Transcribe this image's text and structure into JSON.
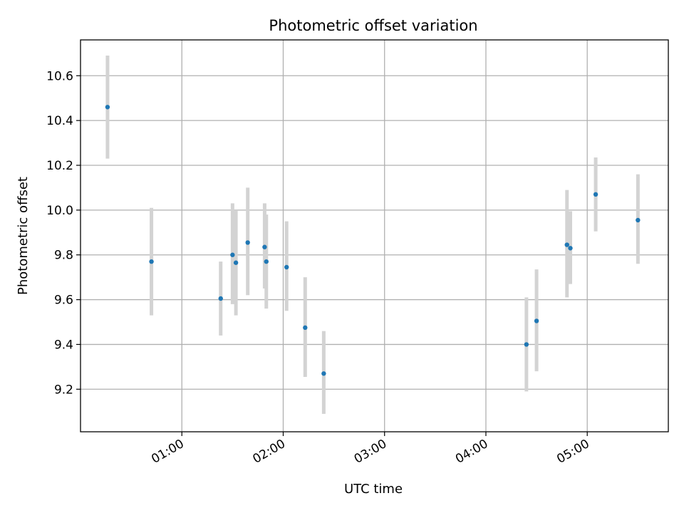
{
  "chart_data": {
    "type": "scatter",
    "title": "Photometric offset variation",
    "xlabel": "UTC time",
    "ylabel": "Photometric offset",
    "x_axis": "time",
    "xlim": [
      "00:00",
      "05:48"
    ],
    "ylim": [
      9.01,
      10.76
    ],
    "grid": true,
    "x_ticks": [
      "01:00",
      "02:00",
      "03:00",
      "04:00",
      "05:00"
    ],
    "y_ticks": [
      9.2,
      9.4,
      9.6,
      9.8,
      10.0,
      10.2,
      10.4,
      10.6
    ],
    "point_color": "#1f77b4",
    "error_color": "#d3d3d3",
    "points": [
      {
        "time": "00:16",
        "y": 10.46,
        "ylow": 10.23,
        "yhigh": 10.69
      },
      {
        "time": "00:42",
        "y": 9.77,
        "ylow": 9.53,
        "yhigh": 10.01
      },
      {
        "time": "01:23",
        "y": 9.605,
        "ylow": 9.44,
        "yhigh": 9.77
      },
      {
        "time": "01:30",
        "y": 9.8,
        "ylow": 9.58,
        "yhigh": 10.03
      },
      {
        "time": "01:32",
        "y": 9.765,
        "ylow": 9.53,
        "yhigh": 10.0
      },
      {
        "time": "01:39",
        "y": 9.855,
        "ylow": 9.62,
        "yhigh": 10.1
      },
      {
        "time": "01:49",
        "y": 9.835,
        "ylow": 9.65,
        "yhigh": 10.03
      },
      {
        "time": "01:50",
        "y": 9.77,
        "ylow": 9.56,
        "yhigh": 9.98
      },
      {
        "time": "02:02",
        "y": 9.745,
        "ylow": 9.55,
        "yhigh": 9.95
      },
      {
        "time": "02:13",
        "y": 9.475,
        "ylow": 9.255,
        "yhigh": 9.7
      },
      {
        "time": "02:24",
        "y": 9.27,
        "ylow": 9.09,
        "yhigh": 9.46
      },
      {
        "time": "04:24",
        "y": 9.4,
        "ylow": 9.19,
        "yhigh": 9.61
      },
      {
        "time": "04:30",
        "y": 9.505,
        "ylow": 9.28,
        "yhigh": 9.735
      },
      {
        "time": "04:48",
        "y": 9.845,
        "ylow": 9.61,
        "yhigh": 10.09
      },
      {
        "time": "04:50",
        "y": 9.83,
        "ylow": 9.67,
        "yhigh": 9.995
      },
      {
        "time": "05:05",
        "y": 10.07,
        "ylow": 9.905,
        "yhigh": 10.235
      },
      {
        "time": "05:30",
        "y": 9.955,
        "ylow": 9.76,
        "yhigh": 10.16
      }
    ]
  }
}
